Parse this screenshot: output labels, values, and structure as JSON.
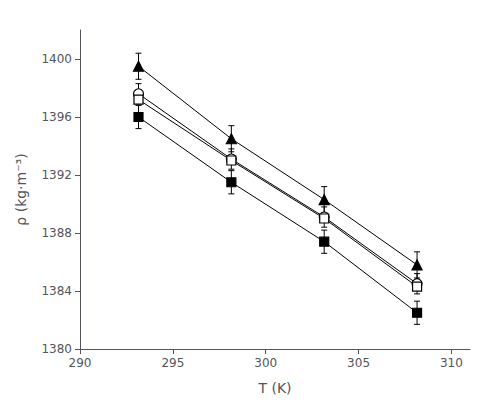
{
  "chart_data": {
    "type": "line",
    "xlabel": "T (K)",
    "ylabel": "ρ (kg·m⁻³)",
    "xlim": [
      290,
      311
    ],
    "ylim": [
      1380,
      1402
    ],
    "xticks": [
      290,
      295,
      300,
      305,
      310
    ],
    "yticks": [
      1380,
      1384,
      1388,
      1392,
      1396,
      1400
    ],
    "grid": false,
    "x": [
      293.15,
      298.15,
      303.15,
      308.15
    ],
    "series": [
      {
        "color": "black",
        "marker": "filled_triangle",
        "values": [
          1399.5,
          1394.5,
          1390.3,
          1385.8
        ],
        "yerr": [
          0.9,
          0.9,
          0.9,
          0.9
        ]
      },
      {
        "color": "black",
        "marker": "open_circle",
        "values": [
          1397.6,
          1393.1,
          1389.1,
          1384.5
        ],
        "yerr": [
          0.7,
          0.7,
          0.7,
          0.7
        ]
      },
      {
        "color": "black",
        "marker": "open_square",
        "values": [
          1397.2,
          1393.0,
          1389.0,
          1384.3
        ]
      },
      {
        "color": "black",
        "marker": "filled_square",
        "values": [
          1396.0,
          1391.5,
          1387.4,
          1382.5
        ],
        "yerr": [
          0.8,
          0.8,
          0.8,
          0.8
        ]
      }
    ]
  }
}
